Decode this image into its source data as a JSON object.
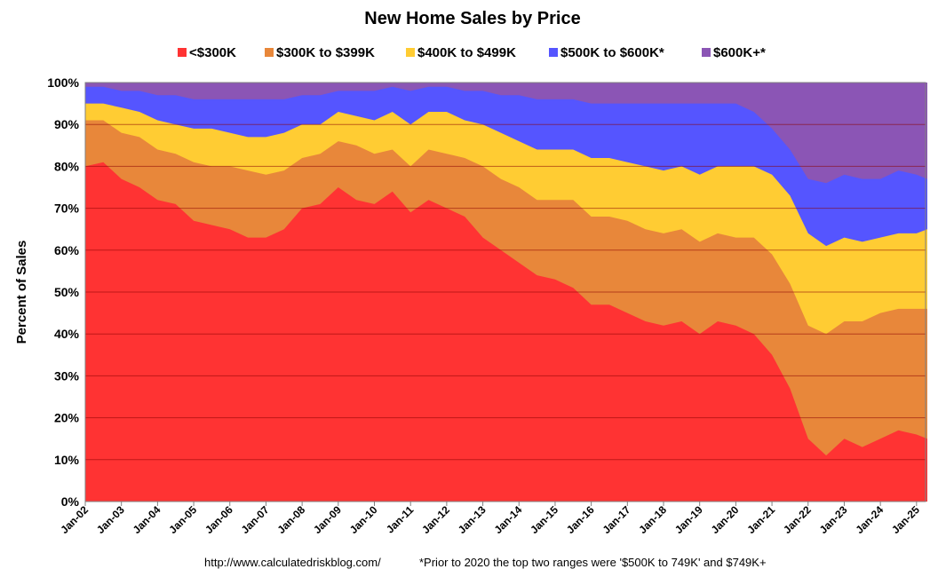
{
  "chart_data": {
    "type": "area",
    "stacked": true,
    "title": "New Home Sales by Price",
    "ylabel": "Percent of Sales",
    "ylim": [
      0,
      100
    ],
    "y_ticks": [
      "0%",
      "10%",
      "20%",
      "30%",
      "40%",
      "50%",
      "60%",
      "70%",
      "80%",
      "90%",
      "100%"
    ],
    "x_ticks": [
      "Jan-02",
      "Jan-03",
      "Jan-04",
      "Jan-05",
      "Jan-06",
      "Jan-07",
      "Jan-08",
      "Jan-09",
      "Jan-10",
      "Jan-11",
      "Jan-12",
      "Jan-13",
      "Jan-14",
      "Jan-15",
      "Jan-16",
      "Jan-17",
      "Jan-18",
      "Jan-19",
      "Jan-20",
      "Jan-21",
      "Jan-22",
      "Jan-23",
      "Jan-24",
      "Jan-25"
    ],
    "x_range": [
      "2002-01",
      "2025-04"
    ],
    "grid": "horizontal",
    "legend_position": "top",
    "series": [
      {
        "name": "<$300K",
        "color": "#ff3333",
        "points": [
          [
            2002.0,
            80
          ],
          [
            2002.5,
            81
          ],
          [
            2003.0,
            77
          ],
          [
            2003.5,
            75
          ],
          [
            2004.0,
            72
          ],
          [
            2004.5,
            71
          ],
          [
            2005.0,
            67
          ],
          [
            2005.5,
            66
          ],
          [
            2006.0,
            65
          ],
          [
            2006.5,
            63
          ],
          [
            2007.0,
            63
          ],
          [
            2007.5,
            65
          ],
          [
            2008.0,
            70
          ],
          [
            2008.5,
            71
          ],
          [
            2009.0,
            75
          ],
          [
            2009.5,
            72
          ],
          [
            2010.0,
            71
          ],
          [
            2010.5,
            74
          ],
          [
            2011.0,
            69
          ],
          [
            2011.5,
            72
          ],
          [
            2012.0,
            70
          ],
          [
            2012.5,
            68
          ],
          [
            2013.0,
            63
          ],
          [
            2013.5,
            60
          ],
          [
            2014.0,
            57
          ],
          [
            2014.5,
            54
          ],
          [
            2015.0,
            53
          ],
          [
            2015.5,
            51
          ],
          [
            2016.0,
            47
          ],
          [
            2016.5,
            47
          ],
          [
            2017.0,
            45
          ],
          [
            2017.5,
            43
          ],
          [
            2018.0,
            42
          ],
          [
            2018.5,
            43
          ],
          [
            2019.0,
            40
          ],
          [
            2019.5,
            43
          ],
          [
            2020.0,
            42
          ],
          [
            2020.5,
            40
          ],
          [
            2021.0,
            35
          ],
          [
            2021.5,
            27
          ],
          [
            2022.0,
            15
          ],
          [
            2022.5,
            11
          ],
          [
            2023.0,
            15
          ],
          [
            2023.5,
            13
          ],
          [
            2024.0,
            15
          ],
          [
            2024.5,
            17
          ],
          [
            2025.0,
            16
          ],
          [
            2025.3,
            15
          ]
        ]
      },
      {
        "name": "$300K to $399K",
        "color": "#e8873a",
        "points": [
          [
            2002.0,
            91
          ],
          [
            2002.5,
            91
          ],
          [
            2003.0,
            88
          ],
          [
            2003.5,
            87
          ],
          [
            2004.0,
            84
          ],
          [
            2004.5,
            83
          ],
          [
            2005.0,
            81
          ],
          [
            2005.5,
            80
          ],
          [
            2006.0,
            80
          ],
          [
            2006.5,
            79
          ],
          [
            2007.0,
            78
          ],
          [
            2007.5,
            79
          ],
          [
            2008.0,
            82
          ],
          [
            2008.5,
            83
          ],
          [
            2009.0,
            86
          ],
          [
            2009.5,
            85
          ],
          [
            2010.0,
            83
          ],
          [
            2010.5,
            84
          ],
          [
            2011.0,
            80
          ],
          [
            2011.5,
            84
          ],
          [
            2012.0,
            83
          ],
          [
            2012.5,
            82
          ],
          [
            2013.0,
            80
          ],
          [
            2013.5,
            77
          ],
          [
            2014.0,
            75
          ],
          [
            2014.5,
            72
          ],
          [
            2015.0,
            72
          ],
          [
            2015.5,
            72
          ],
          [
            2016.0,
            68
          ],
          [
            2016.5,
            68
          ],
          [
            2017.0,
            67
          ],
          [
            2017.5,
            65
          ],
          [
            2018.0,
            64
          ],
          [
            2018.5,
            65
          ],
          [
            2019.0,
            62
          ],
          [
            2019.5,
            64
          ],
          [
            2020.0,
            63
          ],
          [
            2020.5,
            63
          ],
          [
            2021.0,
            59
          ],
          [
            2021.5,
            52
          ],
          [
            2022.0,
            42
          ],
          [
            2022.5,
            40
          ],
          [
            2023.0,
            43
          ],
          [
            2023.5,
            43
          ],
          [
            2024.0,
            45
          ],
          [
            2024.5,
            46
          ],
          [
            2025.0,
            46
          ],
          [
            2025.3,
            46
          ]
        ]
      },
      {
        "name": "$400K to $499K",
        "color": "#ffcc33",
        "points": [
          [
            2002.0,
            95
          ],
          [
            2002.5,
            95
          ],
          [
            2003.0,
            94
          ],
          [
            2003.5,
            93
          ],
          [
            2004.0,
            91
          ],
          [
            2004.5,
            90
          ],
          [
            2005.0,
            89
          ],
          [
            2005.5,
            89
          ],
          [
            2006.0,
            88
          ],
          [
            2006.5,
            87
          ],
          [
            2007.0,
            87
          ],
          [
            2007.5,
            88
          ],
          [
            2008.0,
            90
          ],
          [
            2008.5,
            90
          ],
          [
            2009.0,
            93
          ],
          [
            2009.5,
            92
          ],
          [
            2010.0,
            91
          ],
          [
            2010.5,
            93
          ],
          [
            2011.0,
            90
          ],
          [
            2011.5,
            93
          ],
          [
            2012.0,
            93
          ],
          [
            2012.5,
            91
          ],
          [
            2013.0,
            90
          ],
          [
            2013.5,
            88
          ],
          [
            2014.0,
            86
          ],
          [
            2014.5,
            84
          ],
          [
            2015.0,
            84
          ],
          [
            2015.5,
            84
          ],
          [
            2016.0,
            82
          ],
          [
            2016.5,
            82
          ],
          [
            2017.0,
            81
          ],
          [
            2017.5,
            80
          ],
          [
            2018.0,
            79
          ],
          [
            2018.5,
            80
          ],
          [
            2019.0,
            78
          ],
          [
            2019.5,
            80
          ],
          [
            2020.0,
            80
          ],
          [
            2020.5,
            80
          ],
          [
            2021.0,
            78
          ],
          [
            2021.5,
            73
          ],
          [
            2022.0,
            64
          ],
          [
            2022.5,
            61
          ],
          [
            2023.0,
            63
          ],
          [
            2023.5,
            62
          ],
          [
            2024.0,
            63
          ],
          [
            2024.5,
            64
          ],
          [
            2025.0,
            64
          ],
          [
            2025.3,
            65
          ]
        ]
      },
      {
        "name": "$500K to $600K*",
        "color": "#5555ff",
        "points": [
          [
            2002.0,
            99
          ],
          [
            2002.5,
            99
          ],
          [
            2003.0,
            98
          ],
          [
            2003.5,
            98
          ],
          [
            2004.0,
            97
          ],
          [
            2004.5,
            97
          ],
          [
            2005.0,
            96
          ],
          [
            2005.5,
            96
          ],
          [
            2006.0,
            96
          ],
          [
            2006.5,
            96
          ],
          [
            2007.0,
            96
          ],
          [
            2007.5,
            96
          ],
          [
            2008.0,
            97
          ],
          [
            2008.5,
            97
          ],
          [
            2009.0,
            98
          ],
          [
            2009.5,
            98
          ],
          [
            2010.0,
            98
          ],
          [
            2010.5,
            99
          ],
          [
            2011.0,
            98
          ],
          [
            2011.5,
            99
          ],
          [
            2012.0,
            99
          ],
          [
            2012.5,
            98
          ],
          [
            2013.0,
            98
          ],
          [
            2013.5,
            97
          ],
          [
            2014.0,
            97
          ],
          [
            2014.5,
            96
          ],
          [
            2015.0,
            96
          ],
          [
            2015.5,
            96
          ],
          [
            2016.0,
            95
          ],
          [
            2016.5,
            95
          ],
          [
            2017.0,
            95
          ],
          [
            2017.5,
            95
          ],
          [
            2018.0,
            95
          ],
          [
            2018.5,
            95
          ],
          [
            2019.0,
            95
          ],
          [
            2019.5,
            95
          ],
          [
            2020.0,
            95
          ],
          [
            2020.5,
            93
          ],
          [
            2021.0,
            89
          ],
          [
            2021.5,
            84
          ],
          [
            2022.0,
            77
          ],
          [
            2022.5,
            76
          ],
          [
            2023.0,
            78
          ],
          [
            2023.5,
            77
          ],
          [
            2024.0,
            77
          ],
          [
            2024.5,
            79
          ],
          [
            2025.0,
            78
          ],
          [
            2025.3,
            77
          ]
        ]
      },
      {
        "name": "$600K+*",
        "color": "#8b55b5",
        "points": [
          [
            2002.0,
            100
          ],
          [
            2025.3,
            100
          ]
        ]
      }
    ]
  },
  "footnote": {
    "url": "http://www.calculatedriskblog.com/",
    "note": "*Prior to 2020 the top two ranges were '$500K to 749K' and $749K+"
  }
}
